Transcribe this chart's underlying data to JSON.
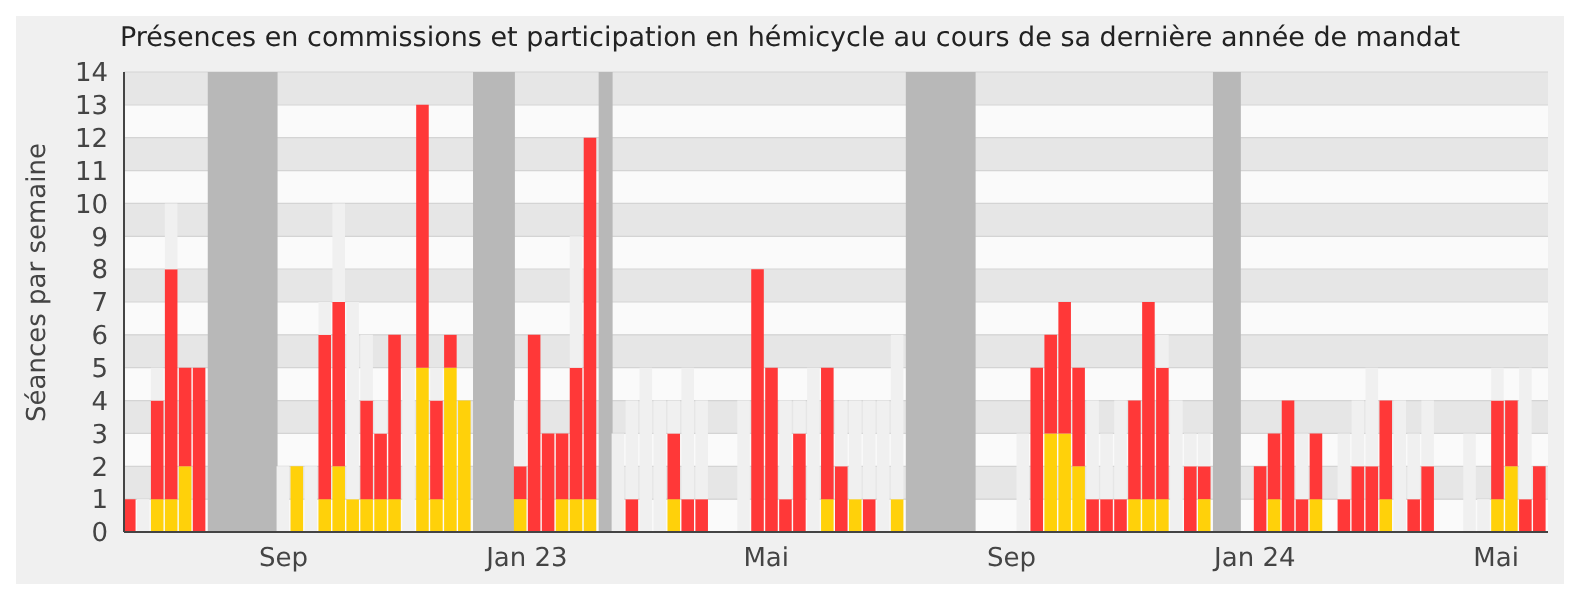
{
  "chart_data": {
    "type": "bar",
    "stacked": true,
    "title": "Présences en commissions et participation en hémicycle au cours de sa dernière année de mandat",
    "ylabel": "Séances par semaine",
    "x": [
      "2022-06-16",
      "2022-06-23",
      "2022-06-30",
      "2022-07-07",
      "2022-07-14",
      "2022-07-21",
      "2022-07-28",
      "2022-08-04",
      "2022-08-11",
      "2022-08-18",
      "2022-08-25",
      "2022-09-01",
      "2022-09-08",
      "2022-09-15",
      "2022-09-22",
      "2022-09-29",
      "2022-10-06",
      "2022-10-13",
      "2022-10-20",
      "2022-10-27",
      "2022-11-03",
      "2022-11-10",
      "2022-11-17",
      "2022-11-24",
      "2022-12-01",
      "2022-12-08",
      "2022-12-15",
      "2022-12-22",
      "2022-12-29",
      "2023-01-05",
      "2023-01-12",
      "2023-01-19",
      "2023-01-26",
      "2023-02-02",
      "2023-02-09",
      "2023-02-16",
      "2023-02-23",
      "2023-03-02",
      "2023-03-09",
      "2023-03-16",
      "2023-03-23",
      "2023-03-30",
      "2023-04-06",
      "2023-04-13",
      "2023-04-20",
      "2023-04-27",
      "2023-05-04",
      "2023-05-11",
      "2023-05-18",
      "2023-05-25",
      "2023-06-01",
      "2023-06-08",
      "2023-06-15",
      "2023-06-22",
      "2023-06-29",
      "2023-07-06",
      "2023-07-13",
      "2023-07-20",
      "2023-07-27",
      "2023-08-03",
      "2023-08-10",
      "2023-08-17",
      "2023-08-24",
      "2023-08-31",
      "2023-09-07",
      "2023-09-14",
      "2023-09-21",
      "2023-09-28",
      "2023-10-05",
      "2023-10-12",
      "2023-10-19",
      "2023-10-26",
      "2023-11-02",
      "2023-11-09",
      "2023-11-16",
      "2023-11-23",
      "2023-11-30",
      "2023-12-07",
      "2023-12-14",
      "2023-12-21",
      "2023-12-28",
      "2024-01-04",
      "2024-01-11",
      "2024-01-18",
      "2024-01-25",
      "2024-02-01",
      "2024-02-08",
      "2024-02-15",
      "2024-02-22",
      "2024-02-29",
      "2024-03-07",
      "2024-03-14",
      "2024-03-21",
      "2024-03-28",
      "2024-04-04",
      "2024-04-11",
      "2024-04-18",
      "2024-04-25",
      "2024-05-02",
      "2024-05-09",
      "2024-05-16",
      "2024-05-23"
    ],
    "series": [
      {
        "color": "#ffd10a",
        "values": [
          null,
          null,
          1,
          1,
          2,
          null,
          null,
          null,
          null,
          null,
          null,
          null,
          2,
          null,
          1,
          2,
          1,
          1,
          1,
          1,
          null,
          5,
          1,
          5,
          4,
          null,
          null,
          null,
          1,
          null,
          null,
          1,
          1,
          1,
          null,
          null,
          null,
          null,
          null,
          1,
          null,
          null,
          null,
          null,
          null,
          null,
          null,
          null,
          null,
          null,
          1,
          null,
          1,
          null,
          null,
          1,
          null,
          null,
          null,
          null,
          null,
          null,
          null,
          null,
          null,
          null,
          3,
          3,
          2,
          null,
          null,
          null,
          1,
          1,
          1,
          null,
          null,
          1,
          null,
          null,
          null,
          null,
          1,
          null,
          null,
          1,
          null,
          null,
          null,
          null,
          1,
          null,
          null,
          null,
          null,
          null,
          null,
          null,
          1,
          2,
          null,
          null
        ]
      },
      {
        "color": "#ff3838",
        "values": [
          1,
          null,
          3,
          7,
          3,
          5,
          null,
          null,
          null,
          null,
          null,
          null,
          null,
          null,
          5,
          5,
          null,
          3,
          2,
          5,
          null,
          8,
          3,
          1,
          null,
          null,
          null,
          null,
          1,
          6,
          3,
          2,
          4,
          11,
          null,
          null,
          1,
          null,
          null,
          2,
          1,
          1,
          null,
          null,
          null,
          8,
          5,
          1,
          3,
          null,
          4,
          2,
          null,
          1,
          null,
          null,
          null,
          null,
          null,
          null,
          null,
          null,
          null,
          null,
          null,
          5,
          3,
          4,
          3,
          1,
          1,
          1,
          3,
          6,
          4,
          null,
          2,
          1,
          null,
          null,
          null,
          2,
          2,
          4,
          1,
          2,
          null,
          1,
          2,
          2,
          3,
          null,
          1,
          2,
          null,
          null,
          null,
          null,
          3,
          2,
          1,
          2
        ]
      },
      {
        "color": "#f0f0f0",
        "values": [
          null,
          1,
          1,
          2,
          null,
          null,
          null,
          null,
          null,
          null,
          null,
          2,
          null,
          2,
          1,
          3,
          6,
          2,
          1,
          null,
          5,
          null,
          1,
          null,
          null,
          null,
          null,
          null,
          2,
          null,
          null,
          null,
          4,
          null,
          null,
          3,
          3,
          5,
          4,
          1,
          4,
          3,
          null,
          null,
          4,
          null,
          null,
          3,
          1,
          5,
          null,
          2,
          3,
          3,
          4,
          5,
          null,
          null,
          null,
          null,
          null,
          null,
          null,
          null,
          3,
          null,
          null,
          null,
          null,
          3,
          2,
          3,
          null,
          null,
          1,
          4,
          1,
          1,
          null,
          null,
          null,
          null,
          null,
          null,
          2,
          null,
          null,
          2,
          2,
          3,
          null,
          4,
          2,
          2,
          null,
          null,
          3,
          1,
          1,
          null,
          4,
          null
        ]
      }
    ],
    "bands": [
      {
        "axis": "x",
        "from": "2022-07-25",
        "to": "2022-08-29",
        "color": "#b8b8b8"
      },
      {
        "axis": "x",
        "from": "2022-12-05",
        "to": "2022-12-26",
        "color": "#b8b8b8"
      },
      {
        "axis": "x",
        "from": "2023-02-06",
        "to": "2023-02-13",
        "color": "#b8b8b8"
      },
      {
        "axis": "x",
        "from": "2023-07-10",
        "to": "2023-08-14",
        "color": "#b8b8b8"
      },
      {
        "axis": "x",
        "from": "2023-12-11",
        "to": "2023-12-25",
        "color": "#b8b8b8"
      }
    ],
    "xlim": [
      "2022-06-13",
      "2024-05-27"
    ],
    "xticks": [
      {
        "value": "2022-09-01",
        "label": "Sep"
      },
      {
        "value": "2023-01-01",
        "label": "Jan 23"
      },
      {
        "value": "2023-05-01",
        "label": "Mai"
      },
      {
        "value": "2023-09-01",
        "label": "Sep"
      },
      {
        "value": "2024-01-01",
        "label": "Jan 24"
      },
      {
        "value": "2024-05-01",
        "label": "Mai"
      }
    ],
    "ylim": [
      0,
      14
    ],
    "yticks": [
      0,
      1,
      2,
      3,
      4,
      5,
      6,
      7,
      8,
      9,
      10,
      11,
      12,
      13,
      14
    ],
    "grid": "y"
  }
}
